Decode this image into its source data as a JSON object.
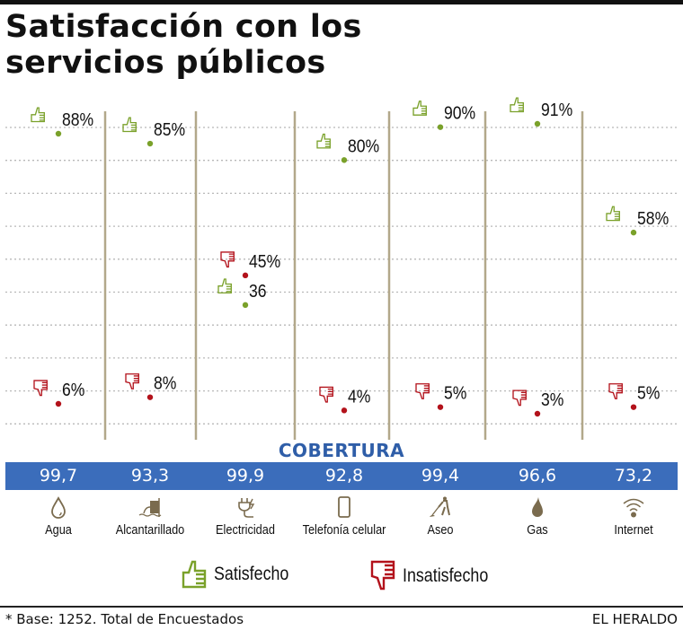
{
  "title_line1": "Satisfacción con los",
  "title_line2": "servicios públicos",
  "colors": {
    "satisfied": "#7aa12a",
    "dissatisfied": "#b3121b",
    "divider": "#b2a88a",
    "grid": "#b8b8b8",
    "coverage_bar": "#3b6dbb",
    "coverage_label": "#2f5ea8",
    "icon": "#7a6b4e"
  },
  "chart_data": {
    "type": "scatter",
    "title": "Satisfacción con los servicios públicos",
    "xlabel": "",
    "ylabel": "",
    "ylim": [
      0,
      100
    ],
    "grid": true,
    "categories": [
      "Agua",
      "Alcantarillado",
      "Electricidad",
      "Telefonía celular",
      "Aseo",
      "Gas",
      "Internet"
    ],
    "series": [
      {
        "name": "Satisfecho",
        "icon": "thumbs-up",
        "values": [
          88,
          85,
          36,
          80,
          90,
          91,
          58
        ],
        "labels": [
          "88%",
          "85%",
          "36",
          "80%",
          "90%",
          "91%",
          "58%"
        ]
      },
      {
        "name": "Insatisfecho",
        "icon": "thumbs-down",
        "values": [
          6,
          8,
          45,
          4,
          5,
          3,
          5
        ],
        "labels": [
          "6%",
          "8%",
          "45%",
          "4%",
          "5%",
          "3%",
          "5%"
        ]
      }
    ],
    "legend": "bottom"
  },
  "coverage": {
    "label": "COBERTURA",
    "values": [
      "99,7",
      "93,3",
      "99,9",
      "92,8",
      "99,4",
      "96,6",
      "73,2"
    ]
  },
  "services": [
    {
      "label": "Agua",
      "icon": "water-drop-icon"
    },
    {
      "label": "Alcantarillado",
      "icon": "sewer-pipe-icon"
    },
    {
      "label": "Electricidad",
      "icon": "electric-plug-icon"
    },
    {
      "label": "Telefonía celular",
      "icon": "mobile-phone-icon"
    },
    {
      "label": "Aseo",
      "icon": "sweeper-icon"
    },
    {
      "label": "Gas",
      "icon": "gas-flame-icon"
    },
    {
      "label": "Internet",
      "icon": "wifi-icon"
    }
  ],
  "legend": {
    "satisfied": "Satisfecho",
    "dissatisfied": "Insatisfecho"
  },
  "footer": {
    "note": "* Base: 1252. Total de Encuestados",
    "brand": "EL HERALDO"
  }
}
